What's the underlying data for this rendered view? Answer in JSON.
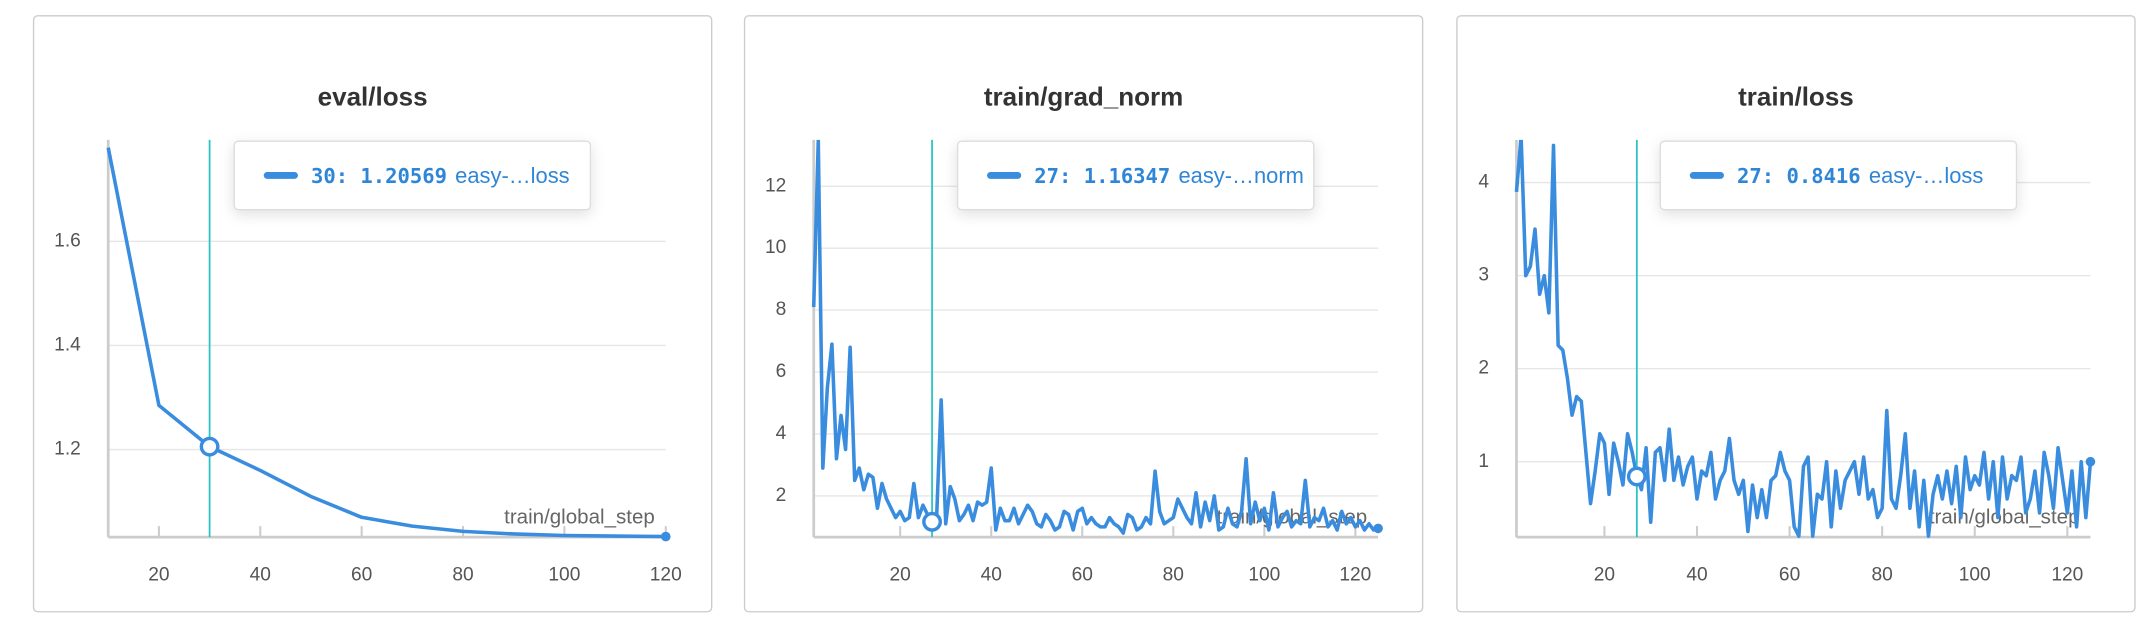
{
  "chart_data": [
    {
      "type": "line",
      "title": "eval/loss",
      "xlabel": "train/global_step",
      "cursor_x": 30,
      "color": "#3a8dde",
      "grid": true,
      "x": [
        10,
        20,
        30,
        40,
        50,
        60,
        70,
        80,
        90,
        100,
        110,
        120
      ],
      "series": [
        {
          "name": "easy-…loss",
          "color": "#3a8dde",
          "values": [
            1.78,
            1.285,
            1.20569,
            1.16,
            1.11,
            1.07,
            1.053,
            1.043,
            1.038,
            1.035,
            1.034,
            1.033
          ]
        }
      ],
      "xlim": [
        10,
        120
      ],
      "xticks": [
        20,
        40,
        60,
        80,
        100,
        120
      ],
      "ylim": [
        1.032,
        1.795
      ],
      "yticks": [
        1.2,
        1.4,
        1.6
      ]
    },
    {
      "type": "line",
      "title": "train/grad_norm",
      "xlabel": "train/global_step",
      "cursor_x": 27,
      "color": "#3a8dde",
      "grid": true,
      "x": [
        1,
        2,
        3,
        4,
        5,
        6,
        7,
        8,
        9,
        10,
        11,
        12,
        13,
        14,
        15,
        16,
        17,
        18,
        19,
        20,
        21,
        22,
        23,
        24,
        25,
        26,
        27,
        28,
        29,
        30,
        31,
        32,
        33,
        34,
        35,
        36,
        37,
        38,
        39,
        40,
        41,
        42,
        43,
        44,
        45,
        46,
        47,
        48,
        49,
        50,
        51,
        52,
        53,
        54,
        55,
        56,
        57,
        58,
        59,
        60,
        61,
        62,
        63,
        64,
        65,
        66,
        67,
        68,
        69,
        70,
        71,
        72,
        73,
        74,
        75,
        76,
        77,
        78,
        79,
        80,
        81,
        82,
        83,
        84,
        85,
        86,
        87,
        88,
        89,
        90,
        91,
        92,
        93,
        94,
        95,
        96,
        97,
        98,
        99,
        100,
        101,
        102,
        103,
        104,
        105,
        106,
        107,
        108,
        109,
        110,
        111,
        112,
        113,
        114,
        115,
        116,
        117,
        118,
        119,
        120,
        121,
        122,
        123,
        124,
        125
      ],
      "series": [
        {
          "name": "easy-…norm",
          "color": "#3a8dde",
          "values": [
            8.1,
            13.5,
            2.9,
            5.5,
            6.9,
            3.2,
            4.6,
            3.5,
            6.8,
            2.5,
            2.9,
            2.2,
            2.7,
            2.6,
            1.6,
            2.4,
            1.9,
            1.6,
            1.3,
            1.5,
            1.2,
            1.3,
            2.4,
            1.3,
            1.7,
            1.4,
            1.16347,
            1.3,
            5.1,
            1.1,
            2.3,
            1.9,
            1.2,
            1.4,
            1.7,
            1.2,
            1.8,
            1.7,
            1.8,
            2.9,
            0.9,
            1.6,
            1.2,
            1.2,
            1.6,
            1.1,
            1.4,
            1.7,
            1.5,
            1.1,
            1.0,
            1.4,
            1.2,
            0.9,
            1.0,
            1.5,
            1.4,
            0.9,
            1.5,
            1.6,
            1.1,
            1.3,
            1.1,
            1.0,
            1.0,
            1.3,
            1.1,
            1.0,
            0.8,
            1.4,
            1.3,
            0.9,
            1.0,
            1.3,
            1.1,
            2.8,
            1.5,
            1.1,
            1.2,
            1.3,
            1.9,
            1.6,
            1.3,
            1.1,
            2.1,
            1.0,
            1.8,
            1.2,
            2.0,
            0.9,
            1.0,
            1.6,
            1.1,
            1.0,
            1.5,
            3.2,
            1.1,
            1.8,
            1.2,
            1.6,
            0.9,
            2.1,
            1.0,
            1.3,
            1.5,
            1.0,
            1.2,
            1.1,
            2.5,
            1.0,
            1.3,
            1.2,
            1.6,
            1.0,
            1.2,
            0.9,
            1.5,
            1.1,
            1.3,
            1.0,
            1.2,
            0.9,
            1.1,
            0.9,
            0.95
          ]
        }
      ],
      "xlim": [
        1,
        125
      ],
      "xticks": [
        20,
        40,
        60,
        80,
        100,
        120
      ],
      "ylim": [
        0.67,
        13.5
      ],
      "yticks": [
        2,
        4,
        6,
        8,
        10,
        12
      ]
    },
    {
      "type": "line",
      "title": "train/loss",
      "xlabel": "train/global_step",
      "cursor_x": 27,
      "color": "#3a8dde",
      "grid": true,
      "x": [
        1,
        2,
        3,
        4,
        5,
        6,
        7,
        8,
        9,
        10,
        11,
        12,
        13,
        14,
        15,
        16,
        17,
        18,
        19,
        20,
        21,
        22,
        23,
        24,
        25,
        26,
        27,
        28,
        29,
        30,
        31,
        32,
        33,
        34,
        35,
        36,
        37,
        38,
        39,
        40,
        41,
        42,
        43,
        44,
        45,
        46,
        47,
        48,
        49,
        50,
        51,
        52,
        53,
        54,
        55,
        56,
        57,
        58,
        59,
        60,
        61,
        62,
        63,
        64,
        65,
        66,
        67,
        68,
        69,
        70,
        71,
        72,
        73,
        74,
        75,
        76,
        77,
        78,
        79,
        80,
        81,
        82,
        83,
        84,
        85,
        86,
        87,
        88,
        89,
        90,
        91,
        92,
        93,
        94,
        95,
        96,
        97,
        98,
        99,
        100,
        101,
        102,
        103,
        104,
        105,
        106,
        107,
        108,
        109,
        110,
        111,
        112,
        113,
        114,
        115,
        116,
        117,
        118,
        119,
        120,
        121,
        122,
        123,
        124,
        125
      ],
      "series": [
        {
          "name": "easy-…loss",
          "color": "#3a8dde",
          "values": [
            3.9,
            4.5,
            3.0,
            3.1,
            3.5,
            2.8,
            3.0,
            2.6,
            4.4,
            2.25,
            2.2,
            1.9,
            1.5,
            1.7,
            1.65,
            1.1,
            0.55,
            0.9,
            1.3,
            1.2,
            0.65,
            1.2,
            1.0,
            0.75,
            1.3,
            1.1,
            0.8416,
            0.7,
            1.15,
            0.35,
            1.1,
            1.15,
            0.8,
            1.35,
            0.8,
            1.05,
            0.75,
            0.95,
            1.05,
            0.6,
            0.9,
            0.85,
            1.1,
            0.6,
            0.8,
            0.9,
            1.25,
            0.8,
            0.65,
            0.8,
            0.25,
            0.75,
            0.4,
            0.7,
            0.4,
            0.8,
            0.85,
            1.1,
            0.9,
            0.8,
            0.3,
            0.2,
            0.95,
            1.05,
            0.2,
            0.65,
            0.6,
            1.0,
            0.3,
            0.9,
            0.5,
            0.8,
            0.9,
            1.0,
            0.65,
            1.05,
            0.6,
            0.7,
            0.4,
            0.5,
            1.55,
            0.6,
            0.5,
            0.85,
            1.3,
            0.5,
            0.9,
            0.3,
            0.8,
            0.2,
            0.65,
            0.85,
            0.6,
            0.9,
            0.55,
            0.95,
            0.4,
            1.05,
            0.7,
            0.85,
            0.75,
            1.1,
            0.6,
            1.0,
            0.4,
            1.05,
            0.6,
            0.85,
            0.8,
            1.05,
            0.45,
            0.6,
            0.9,
            0.45,
            1.1,
            0.85,
            0.5,
            1.15,
            0.8,
            0.45,
            0.9,
            0.3,
            1.0,
            0.4,
            1.0
          ]
        }
      ],
      "xlim": [
        1,
        125
      ],
      "xticks": [
        20,
        40,
        60,
        80,
        100,
        120
      ],
      "ylim": [
        0.19,
        4.46
      ],
      "yticks": [
        1,
        2,
        3,
        4
      ]
    }
  ]
}
